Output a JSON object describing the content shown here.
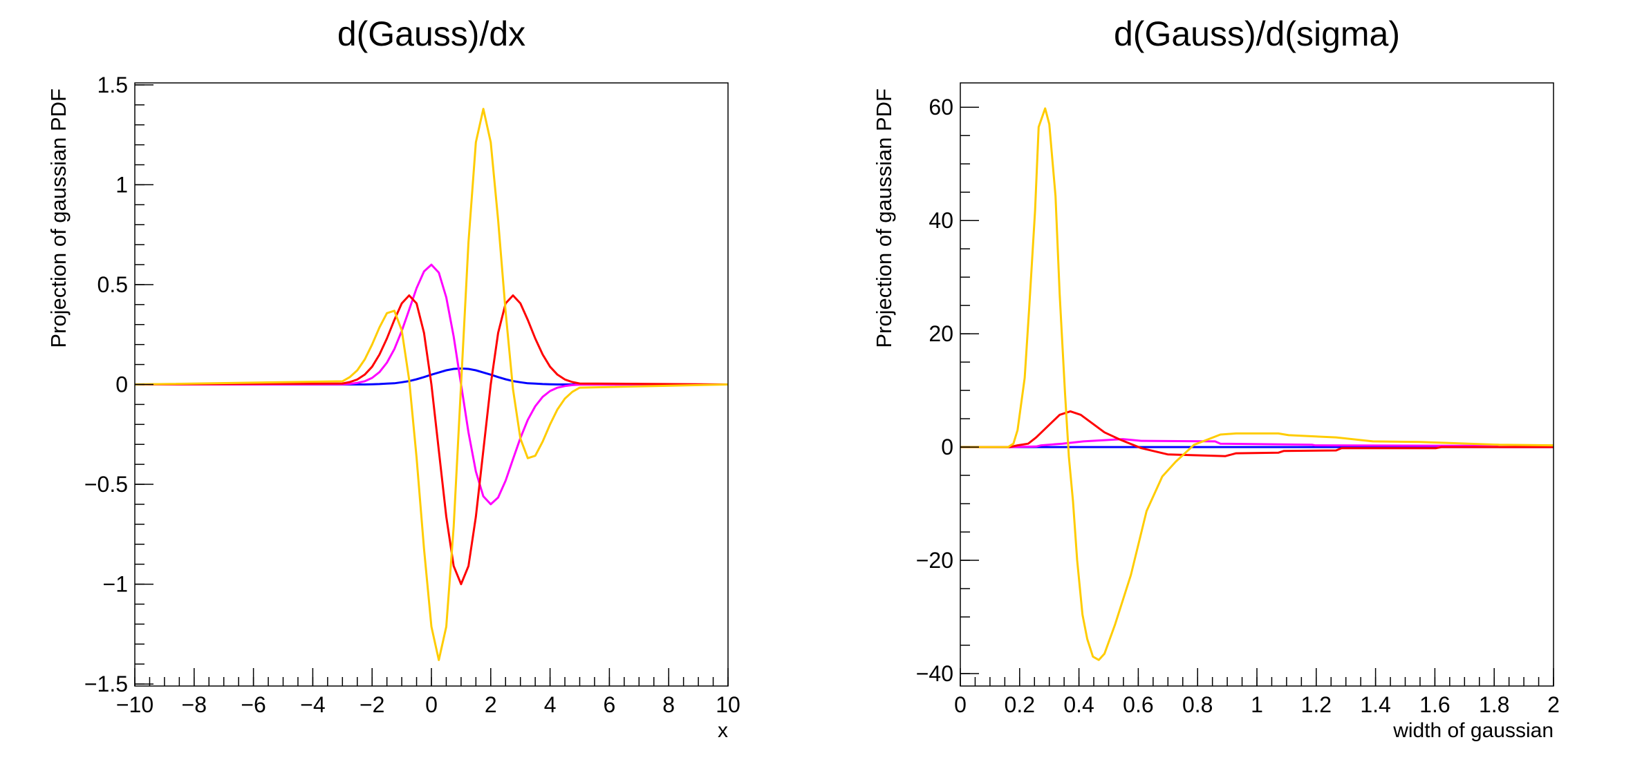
{
  "colors": {
    "blue": "#0000ff",
    "magenta": "#ff00ff",
    "red": "#ff0000",
    "yellow": "#ffcc00",
    "frame": "#000000"
  },
  "chart_data": [
    {
      "type": "line",
      "title": "d(Gauss)/dx",
      "xlabel": "x",
      "ylabel": "Projection of gaussian PDF",
      "xlim": [
        -10,
        10
      ],
      "ylim": [
        -1.51,
        1.51
      ],
      "xticks": [
        -10,
        -8,
        -6,
        -4,
        -2,
        0,
        2,
        4,
        6,
        8,
        10
      ],
      "xtick_labels": [
        "−10",
        "−8",
        "−6",
        "−4",
        "−2",
        "0",
        "2",
        "4",
        "6",
        "8",
        "10"
      ],
      "x_minor_step": 0.5,
      "yticks": [
        -1.5,
        -1,
        -0.5,
        0,
        0.5,
        1,
        1.5
      ],
      "ytick_labels": [
        "−1.5",
        "−1",
        "−0.5",
        "0",
        "0.5",
        "1",
        "1.5"
      ],
      "y_minor_step": 0.1,
      "grid": false,
      "x": [
        -3,
        -2.75,
        -2.5,
        -2.25,
        -2,
        -1.75,
        -1.5,
        -1.25,
        -1,
        -0.75,
        -0.5,
        -0.25,
        0,
        0.25,
        0.5,
        0.75,
        1,
        1.25,
        1.5,
        1.75,
        2,
        2.25,
        2.5,
        2.75,
        3,
        3.25,
        3.5,
        3.75,
        4,
        4.25,
        4.5,
        4.75,
        5
      ],
      "series": [
        {
          "color": "#0000ff",
          "values": [
            0,
            0,
            0,
            0,
            0.001,
            0.002,
            0.004,
            0.006,
            0.011,
            0.017,
            0.026,
            0.037,
            0.049,
            0.06,
            0.071,
            0.078,
            0.08,
            0.078,
            0.071,
            0.06,
            0.049,
            0.037,
            0.026,
            0.017,
            0.011,
            0.006,
            0.004,
            0.002,
            0.001,
            0,
            0,
            0,
            0
          ]
        },
        {
          "color": "#ff00ff",
          "values": [
            0.001,
            0.003,
            0.008,
            0.016,
            0.033,
            0.062,
            0.109,
            0.177,
            0.268,
            0.374,
            0.482,
            0.566,
            0.6,
            0.56,
            0.436,
            0.24,
            0,
            -0.24,
            -0.436,
            -0.56,
            -0.6,
            -0.566,
            -0.482,
            -0.374,
            -0.268,
            -0.177,
            -0.109,
            -0.062,
            -0.033,
            -0.016,
            -0.008,
            -0.003,
            -0.001
          ]
        },
        {
          "color": "#ff0000",
          "values": [
            0.005,
            0.012,
            0.025,
            0.049,
            0.089,
            0.15,
            0.23,
            0.323,
            0.406,
            0.446,
            0.406,
            0.258,
            0,
            -0.33,
            -0.662,
            -0.909,
            -1.0,
            -0.909,
            -0.662,
            -0.33,
            0,
            0.258,
            0.406,
            0.446,
            0.406,
            0.323,
            0.23,
            0.15,
            0.089,
            0.049,
            0.025,
            0.012,
            0.005
          ]
        },
        {
          "color": "#ffcc00",
          "values": [
            0.016,
            0.037,
            0.071,
            0.125,
            0.2,
            0.286,
            0.357,
            0.369,
            0.271,
            0.024,
            -0.365,
            -0.823,
            -1.213,
            -1.38,
            -1.213,
            -0.712,
            0,
            0.712,
            1.213,
            1.38,
            1.213,
            0.823,
            0.365,
            -0.024,
            -0.271,
            -0.369,
            -0.357,
            -0.286,
            -0.2,
            -0.125,
            -0.071,
            -0.037,
            -0.016
          ]
        }
      ]
    },
    {
      "type": "line",
      "title": "d(Gauss)/d(sigma)",
      "xlabel": "width of gaussian",
      "ylabel": "Projection of gaussian PDF",
      "xlim": [
        0,
        2
      ],
      "ylim": [
        -42.2,
        64.3
      ],
      "xticks": [
        0,
        0.2,
        0.4,
        0.6,
        0.8,
        1,
        1.2,
        1.4,
        1.6,
        1.8,
        2
      ],
      "xtick_labels": [
        "0",
        "0.2",
        "0.4",
        "0.6",
        "0.8",
        "1",
        "1.2",
        "1.4",
        "1.6",
        "1.8",
        "2"
      ],
      "x_minor_step": 0.05,
      "yticks": [
        -40,
        -20,
        0,
        20,
        40,
        60
      ],
      "ytick_labels": [
        "−40",
        "−20",
        "0",
        "20",
        "40",
        "60"
      ],
      "y_minor_step": 5,
      "grid": false,
      "series": [
        {
          "color": "#0000ff",
          "x": [
            0,
            0.27,
            1.6,
            2
          ],
          "values": [
            0,
            0,
            0,
            0
          ]
        },
        {
          "color": "#ff00ff",
          "x": [
            0,
            0.167,
            0.256,
            0.273,
            0.344,
            0.415,
            0.548,
            0.61,
            0.859,
            0.877,
            1.187,
            1.196,
            1.8,
            1.817,
            2
          ],
          "values": [
            0,
            0,
            0.1,
            0.3,
            0.6,
            1.0,
            1.4,
            1.1,
            1.0,
            0.6,
            0.4,
            0.3,
            0.2,
            0,
            0
          ]
        },
        {
          "color": "#ff0000",
          "x": [
            0,
            0.167,
            0.193,
            0.229,
            0.256,
            0.335,
            0.371,
            0.406,
            0.486,
            0.539,
            0.61,
            0.699,
            0.894,
            0.93,
            1.072,
            1.09,
            1.267,
            1.285,
            1.604,
            1.622,
            2
          ],
          "values": [
            0,
            0,
            0.3,
            0.6,
            1.7,
            5.7,
            6.3,
            5.7,
            2.6,
            1.3,
            -0.2,
            -1.3,
            -1.6,
            -1.1,
            -1.0,
            -0.7,
            -0.6,
            -0.2,
            -0.2,
            0,
            0
          ]
        },
        {
          "color": "#ffcc00",
          "x": [
            0,
            0.161,
            0.179,
            0.193,
            0.217,
            0.232,
            0.252,
            0.264,
            0.286,
            0.3,
            0.321,
            0.335,
            0.353,
            0.366,
            0.38,
            0.394,
            0.412,
            0.428,
            0.447,
            0.467,
            0.486,
            0.522,
            0.575,
            0.628,
            0.681,
            0.726,
            0.788,
            0.877,
            0.93,
            1.072,
            1.107,
            1.267,
            1.391,
            1.551,
            1.817,
            2
          ],
          "values": [
            0,
            0,
            0.6,
            3.0,
            12.2,
            24.3,
            41.7,
            56.5,
            59.8,
            57.0,
            44.3,
            27.0,
            9.6,
            -1.7,
            -9.6,
            -20.0,
            -29.6,
            -33.9,
            -37.0,
            -37.6,
            -36.5,
            -31.3,
            -22.6,
            -11.3,
            -5.2,
            -2.6,
            0.4,
            2.2,
            2.4,
            2.4,
            2.1,
            1.7,
            1.0,
            0.9,
            0.4,
            0.3
          ]
        }
      ]
    }
  ]
}
